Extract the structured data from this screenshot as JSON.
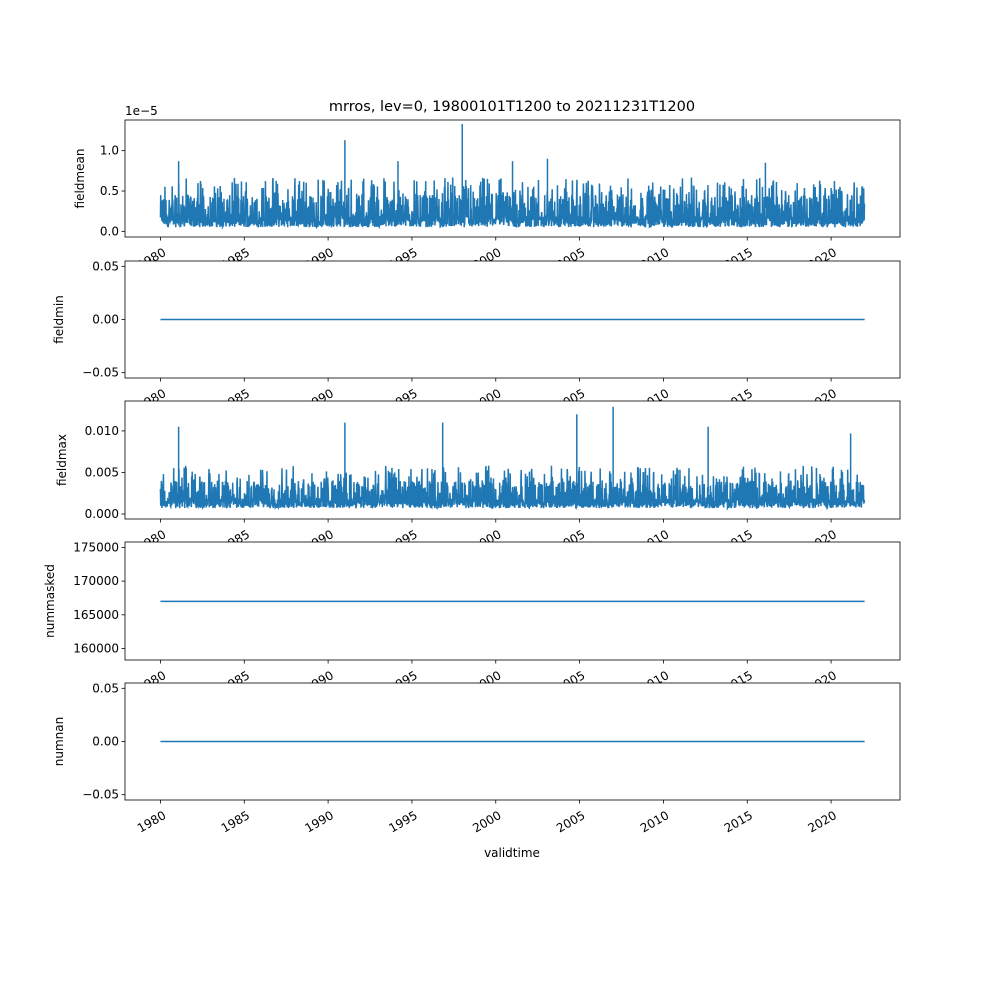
{
  "title": "mrros, lev=0, 19800101T1200 to 20211231T1200",
  "xlabel": "validtime",
  "x_tick_labels": [
    "1980",
    "1985",
    "1990",
    "1995",
    "2000",
    "2005",
    "2010",
    "2015",
    "2020"
  ],
  "colors": {
    "line": "#1f77b4",
    "axes": "#000000",
    "background": "#ffffff"
  },
  "chart_data": [
    {
      "type": "line",
      "ylabel": "fieldmean",
      "offset_text": "1e−5",
      "xlim": [
        "1977-11-20",
        "2024-02-11"
      ],
      "ylim": [
        -0.07,
        1.38
      ],
      "yticks": [
        0.0,
        0.5,
        1.0
      ],
      "ytick_labels": [
        "0.0",
        "0.5",
        "1.0"
      ],
      "series_kind": "noisy_daily",
      "scale_note": "values shown multiplied by 1e-5",
      "x_range": [
        "1980-01-01",
        "2021-12-31"
      ],
      "typical_range": [
        0.05,
        0.45
      ],
      "notable_peaks": [
        {
          "x": "1981-02",
          "y": 0.87
        },
        {
          "x": "1991-01",
          "y": 1.13
        },
        {
          "x": "1994-03",
          "y": 0.87
        },
        {
          "x": "1998-01",
          "y": 1.33
        },
        {
          "x": "2001-01",
          "y": 0.87
        },
        {
          "x": "2003-02",
          "y": 0.9
        },
        {
          "x": "2016-02",
          "y": 0.85
        }
      ]
    },
    {
      "type": "line",
      "ylabel": "fieldmin",
      "xlim": [
        "1977-11-20",
        "2024-02-11"
      ],
      "ylim": [
        -0.055,
        0.055
      ],
      "yticks": [
        -0.05,
        0.0,
        0.05
      ],
      "ytick_labels": [
        "−0.05",
        "0.00",
        "0.05"
      ],
      "series_kind": "constant",
      "x_range": [
        "1980-01-01",
        "2021-12-31"
      ],
      "constant_value": 0.0
    },
    {
      "type": "line",
      "ylabel": "fieldmax",
      "xlim": [
        "1977-11-20",
        "2024-02-11"
      ],
      "ylim": [
        -0.0006,
        0.0136
      ],
      "yticks": [
        0.0,
        0.005,
        0.01
      ],
      "ytick_labels": [
        "0.000",
        "0.005",
        "0.010"
      ],
      "series_kind": "noisy_daily",
      "x_range": [
        "1980-01-01",
        "2021-12-31"
      ],
      "typical_range": [
        0.0007,
        0.004
      ],
      "notable_peaks": [
        {
          "x": "1981-02",
          "y": 0.0105
        },
        {
          "x": "1991-01",
          "y": 0.011
        },
        {
          "x": "1996-11",
          "y": 0.011
        },
        {
          "x": "2004-11",
          "y": 0.012
        },
        {
          "x": "2007-01",
          "y": 0.0129
        },
        {
          "x": "2012-09",
          "y": 0.0105
        },
        {
          "x": "2021-03",
          "y": 0.0097
        }
      ]
    },
    {
      "type": "line",
      "ylabel": "nummasked",
      "xlim": [
        "1977-11-20",
        "2024-02-11"
      ],
      "ylim": [
        158300,
        175800
      ],
      "yticks": [
        160000,
        165000,
        170000,
        175000
      ],
      "ytick_labels": [
        "160000",
        "165000",
        "170000",
        "175000"
      ],
      "series_kind": "constant",
      "x_range": [
        "1980-01-01",
        "2021-12-31"
      ],
      "constant_value": 167000
    },
    {
      "type": "line",
      "ylabel": "numnan",
      "xlim": [
        "1977-11-20",
        "2024-02-11"
      ],
      "ylim": [
        -0.055,
        0.055
      ],
      "yticks": [
        -0.05,
        0.0,
        0.05
      ],
      "ytick_labels": [
        "−0.05",
        "0.00",
        "0.05"
      ],
      "series_kind": "constant",
      "x_range": [
        "1980-01-01",
        "2021-12-31"
      ],
      "constant_value": 0.0
    }
  ]
}
